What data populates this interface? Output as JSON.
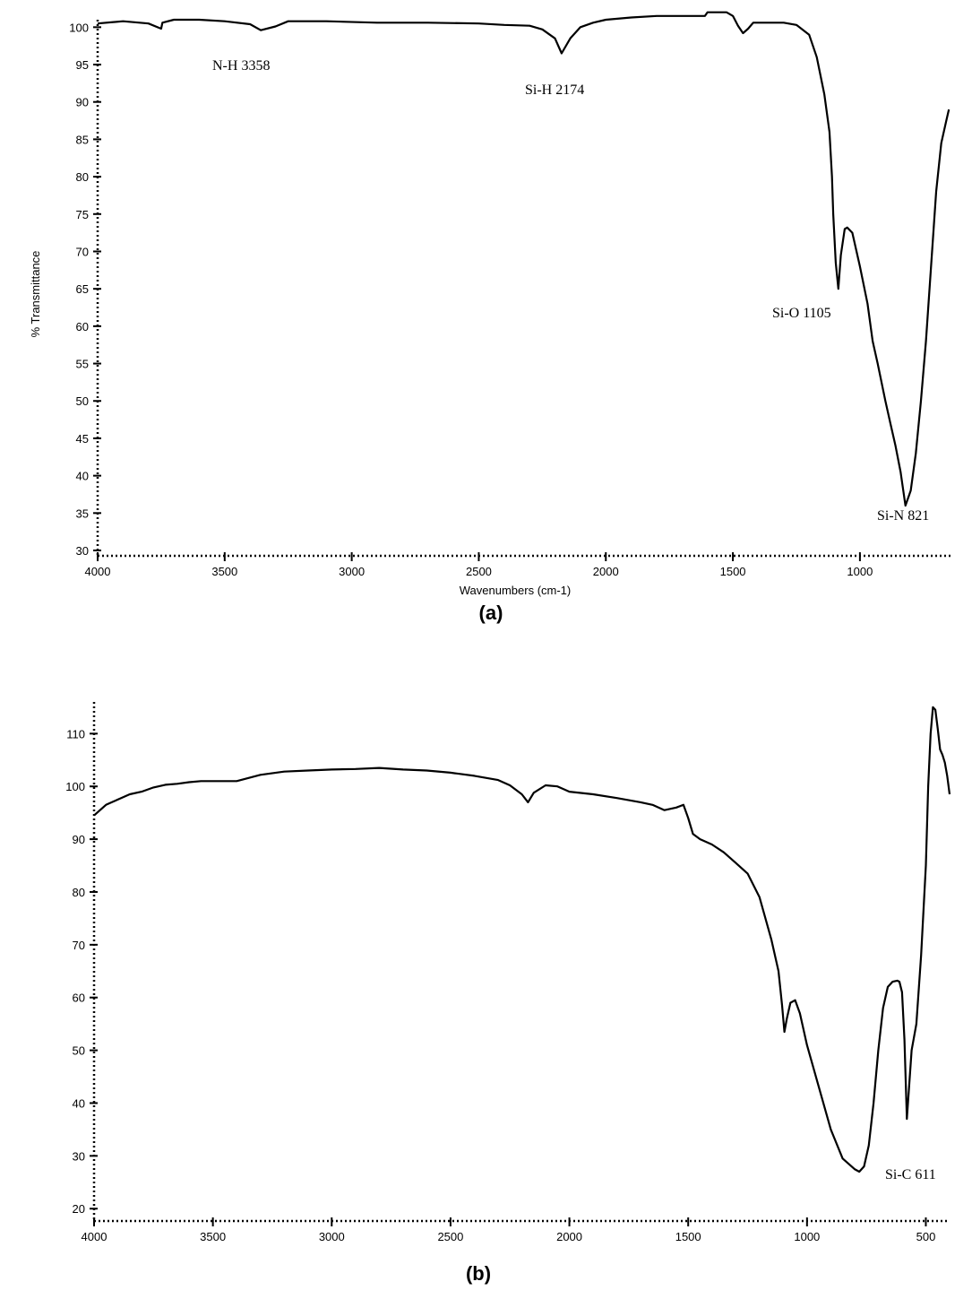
{
  "chart_data": [
    {
      "panel": "(a)",
      "type": "line",
      "xlabel": "Wavenumbers (cm-1)",
      "ylabel": "% Transmittance",
      "xlim": [
        4000,
        640
      ],
      "ylim": [
        30,
        101
      ],
      "x_ticks": [
        4000,
        3500,
        3000,
        2500,
        2000,
        1500,
        1000
      ],
      "y_ticks": [
        30,
        35,
        40,
        45,
        50,
        55,
        60,
        65,
        70,
        75,
        80,
        85,
        90,
        95,
        100
      ],
      "grid": false,
      "series": [
        {
          "x": [
            4000,
            3900,
            3800,
            3750,
            3745,
            3700,
            3600,
            3500,
            3400,
            3358,
            3300,
            3250,
            3100,
            2900,
            2700,
            2500,
            2400,
            2300,
            2250,
            2200,
            2174,
            2140,
            2100,
            2050,
            2000,
            1900,
            1800,
            1700,
            1610,
            1600,
            1525,
            1500,
            1480,
            1460,
            1440,
            1420,
            1400,
            1300,
            1250,
            1200,
            1170,
            1140,
            1120,
            1110,
            1105,
            1095,
            1085,
            1075,
            1060,
            1050,
            1030,
            1000,
            970,
            950,
            930,
            900,
            880,
            860,
            840,
            821,
            800,
            780,
            760,
            740,
            720,
            700,
            680,
            660,
            650
          ],
          "values": [
            100.5,
            100.8,
            100.5,
            99.8,
            100.6,
            101,
            101,
            100.8,
            100.4,
            99.6,
            100.1,
            100.8,
            100.8,
            100.6,
            100.6,
            100.5,
            100.3,
            100.2,
            99.7,
            98.5,
            96.5,
            98.5,
            100.0,
            100.6,
            101,
            101.3,
            101.5,
            101.5,
            101.5,
            102,
            102,
            101.5,
            100.2,
            99.2,
            99.8,
            100.6,
            100.6,
            100.6,
            100.3,
            99.0,
            96.0,
            91.0,
            86.0,
            80.0,
            75.0,
            68.5,
            65.0,
            69.5,
            73.0,
            73.2,
            72.5,
            68.0,
            63.0,
            58.0,
            55.0,
            50.0,
            47.0,
            44.0,
            40.5,
            36.0,
            38.0,
            43.0,
            50.0,
            58.0,
            68.0,
            78.0,
            84.5,
            87.5,
            89.0
          ]
        }
      ],
      "annotations": [
        "N-H 3358",
        "Si-H 2174",
        "Si-O 1105",
        "Si-N 821"
      ]
    },
    {
      "panel": "(b)",
      "type": "line",
      "xlabel": "",
      "ylabel": "",
      "xlim": [
        4000,
        400
      ],
      "ylim": [
        18,
        116
      ],
      "x_ticks": [
        4000,
        3500,
        3000,
        2500,
        2000,
        1500,
        1000,
        500
      ],
      "y_ticks": [
        20,
        30,
        40,
        50,
        60,
        70,
        80,
        90,
        100,
        110
      ],
      "grid": false,
      "series": [
        {
          "x": [
            4000,
            3950,
            3900,
            3850,
            3800,
            3750,
            3700,
            3650,
            3600,
            3550,
            3500,
            3400,
            3300,
            3200,
            3100,
            3000,
            2900,
            2800,
            2700,
            2600,
            2500,
            2400,
            2300,
            2250,
            2200,
            2174,
            2150,
            2100,
            2050,
            2000,
            1900,
            1800,
            1700,
            1650,
            1600,
            1550,
            1520,
            1500,
            1480,
            1450,
            1400,
            1350,
            1300,
            1250,
            1200,
            1150,
            1120,
            1105,
            1095,
            1085,
            1070,
            1050,
            1030,
            1000,
            950,
            900,
            850,
            800,
            780,
            760,
            740,
            720,
            700,
            680,
            660,
            640,
            620,
            611,
            600,
            590,
            580,
            560,
            540,
            520,
            500,
            490,
            480,
            470,
            460,
            450,
            440,
            430,
            420,
            410,
            400
          ],
          "values": [
            94.5,
            96.5,
            97.5,
            98.5,
            99.0,
            99.8,
            100.3,
            100.5,
            100.8,
            101.0,
            101.0,
            101.0,
            102.2,
            102.8,
            103.0,
            103.2,
            103.3,
            103.5,
            103.2,
            103.0,
            102.6,
            102.0,
            101.2,
            100.2,
            98.5,
            97.0,
            98.8,
            100.2,
            100.0,
            99.0,
            98.5,
            97.8,
            97.0,
            96.5,
            95.5,
            96.0,
            96.5,
            94.0,
            91.0,
            90.0,
            89.0,
            87.5,
            85.5,
            83.5,
            79.0,
            71.0,
            65.0,
            58.5,
            53.5,
            56.0,
            59.0,
            59.5,
            57.0,
            51.0,
            43.0,
            35.0,
            29.5,
            27.5,
            27.0,
            28.0,
            32.0,
            40.0,
            50.0,
            58.0,
            62.0,
            63.0,
            63.2,
            63.0,
            61.0,
            52.0,
            37.0,
            50.0,
            55.0,
            68.0,
            85.0,
            100.0,
            110.0,
            115.0,
            114.5,
            111.0,
            107.0,
            106.0,
            104.5,
            102.0,
            98.5
          ]
        }
      ],
      "annotations": [
        "Si-C 611"
      ]
    }
  ]
}
